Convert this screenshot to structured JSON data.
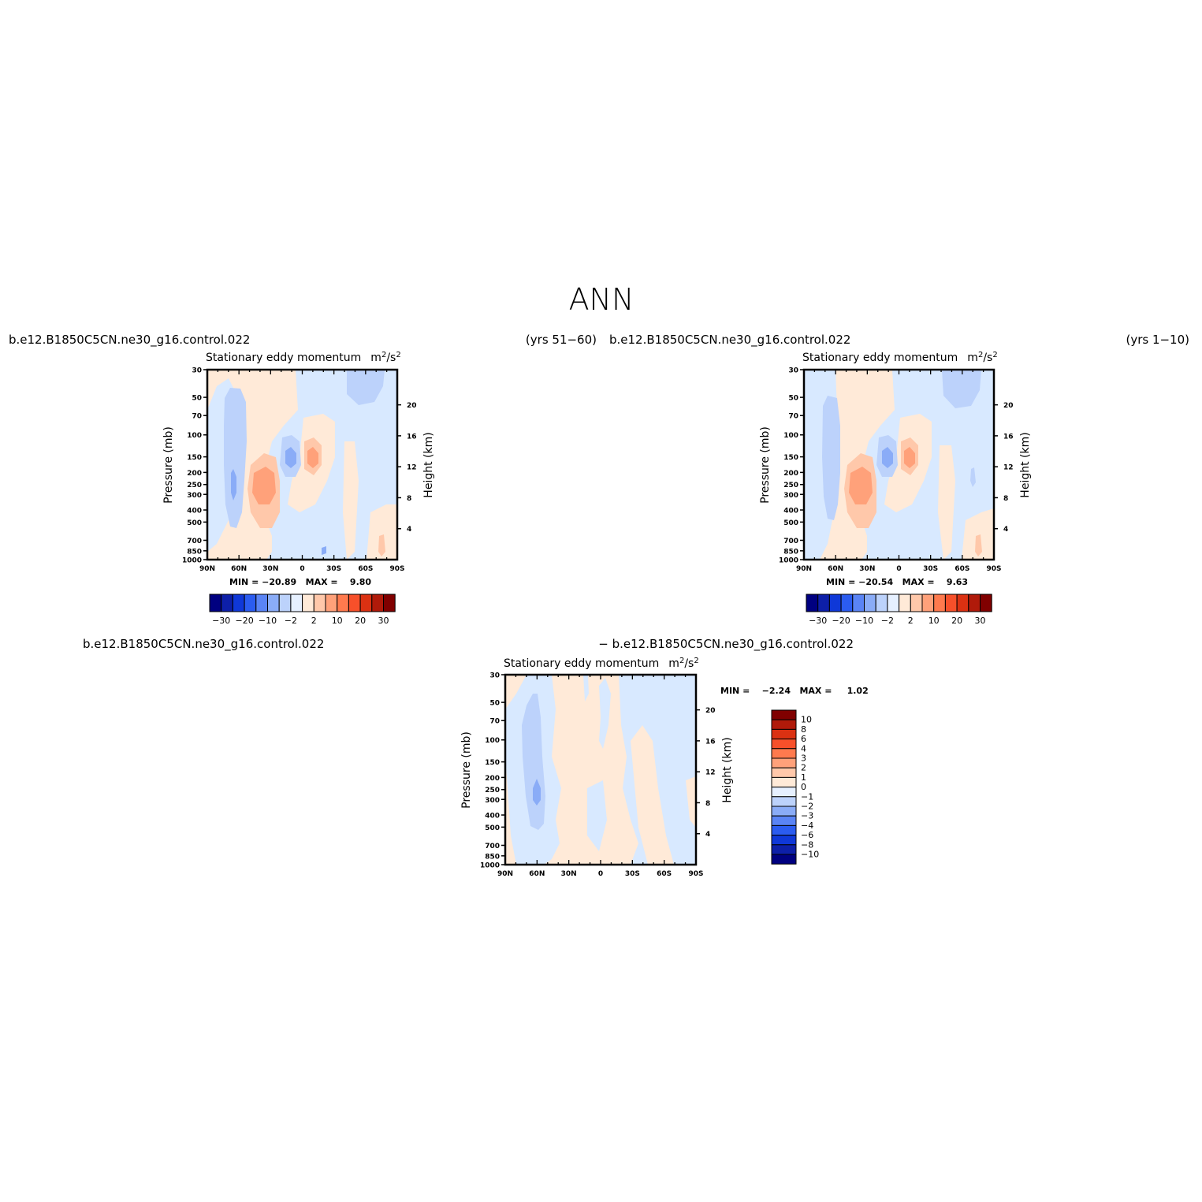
{
  "figure_title": "ANN",
  "panels": [
    {
      "case": "b.e12.B1850C5CN.ne30_g16.control.022",
      "years": "(yrs 51−60)",
      "title": "Stationary eddy momentum",
      "units_base": "m",
      "units_sup1": "2",
      "units_mid": "/s",
      "units_sup2": "2",
      "min_max": "MIN = −20.89   MAX =    9.80"
    },
    {
      "case": "b.e12.B1850C5CN.ne30_g16.control.022",
      "years": "(yrs 1−10)",
      "title": "Stationary eddy momentum",
      "units_base": "m",
      "units_sup1": "2",
      "units_mid": "/s",
      "units_sup2": "2",
      "min_max": "MIN = −20.54   MAX =    9.63"
    },
    {
      "case_line1": "b.e12.B1850C5CN.ne30_g16.control.022",
      "case_line2": "− b.e12.B1850C5CN.ne30_g16.control.022",
      "title": "Stationary eddy momentum",
      "units_base": "m",
      "units_sup1": "2",
      "units_mid": "/s",
      "units_sup2": "2",
      "min_max": "MIN =    −2.24   MAX =     1.02"
    }
  ],
  "axes": {
    "ylabel_left": "Pressure (mb)",
    "ylabel_right": "Height (km)",
    "pressure_ticks": [
      "30",
      "50",
      "70",
      "100",
      "150",
      "200",
      "250",
      "300",
      "400",
      "500",
      "700",
      "850",
      "1000"
    ],
    "height_ticks": [
      "4",
      "8",
      "12",
      "16",
      "20"
    ],
    "lat_ticks": [
      "90N",
      "60N",
      "30N",
      "0",
      "30S",
      "60S",
      "90S"
    ]
  },
  "colorbars": {
    "abs_labels": [
      "−30",
      "−20",
      "−10",
      "−2",
      "2",
      "10",
      "20",
      "30"
    ],
    "abs_colors": [
      "#000080",
      "#0d1fa8",
      "#0f38d8",
      "#2b5cf0",
      "#5a84f5",
      "#8aacf7",
      "#bcd2fb",
      "#e6f0ff",
      "#ffead8",
      "#ffc8aa",
      "#ffa17a",
      "#ff7a4e",
      "#f7502a",
      "#db3112",
      "#b01a0a",
      "#800000"
    ],
    "diff_labels": [
      "10",
      "8",
      "6",
      "4",
      "3",
      "2",
      "1",
      "0",
      "−1",
      "−2",
      "−3",
      "−4",
      "−6",
      "−8",
      "−10"
    ],
    "diff_colors": [
      "#800000",
      "#b01a0a",
      "#db3112",
      "#f7502a",
      "#ff7a4e",
      "#ffa17a",
      "#ffc8aa",
      "#ffead8",
      "#e6f0ff",
      "#bcd2fb",
      "#8aacf7",
      "#5a84f5",
      "#2b5cf0",
      "#0f38d8",
      "#0d1fa8",
      "#000080"
    ]
  },
  "chart_data": [
    {
      "type": "heatmap",
      "title": "Stationary eddy momentum",
      "units": "m²/s²",
      "xlabel": "",
      "ylabel": "Pressure (mb)",
      "ylabel_right": "Height (km)",
      "x": [
        "90N",
        "60N",
        "30N",
        "0",
        "30S",
        "60S",
        "90S"
      ],
      "y_pressure_mb": [
        30,
        50,
        70,
        100,
        150,
        200,
        250,
        300,
        400,
        500,
        700,
        850,
        1000
      ],
      "ylim_mb": [
        1000,
        30
      ],
      "yscale": "log",
      "min": -20.89,
      "max": 9.8,
      "color_levels": [
        -30,
        -20,
        -10,
        -2,
        2,
        10,
        20,
        30
      ],
      "features": [
        {
          "lat": -48,
          "p_mb": 300,
          "value": -12
        },
        {
          "lat": -33,
          "p_mb": 280,
          "value": 8
        },
        {
          "lat": -12,
          "p_mb": 150,
          "value": -20
        },
        {
          "lat": 10,
          "p_mb": 150,
          "value": 9
        }
      ]
    },
    {
      "type": "heatmap",
      "title": "Stationary eddy momentum",
      "units": "m²/s²",
      "xlabel": "",
      "ylabel": "Pressure (mb)",
      "ylabel_right": "Height (km)",
      "x": [
        "90N",
        "60N",
        "30N",
        "0",
        "30S",
        "60S",
        "90S"
      ],
      "y_pressure_mb": [
        30,
        50,
        70,
        100,
        150,
        200,
        250,
        300,
        400,
        500,
        700,
        850,
        1000
      ],
      "ylim_mb": [
        1000,
        30
      ],
      "yscale": "log",
      "min": -20.54,
      "max": 9.63,
      "color_levels": [
        -30,
        -20,
        -10,
        -2,
        2,
        10,
        20,
        30
      ],
      "features": [
        {
          "lat": -48,
          "p_mb": 300,
          "value": -8
        },
        {
          "lat": -33,
          "p_mb": 280,
          "value": 8
        },
        {
          "lat": -12,
          "p_mb": 150,
          "value": -20
        },
        {
          "lat": 10,
          "p_mb": 150,
          "value": 9
        }
      ]
    },
    {
      "type": "heatmap",
      "title": "Stationary eddy momentum",
      "units": "m²/s²",
      "xlabel": "",
      "ylabel": "Pressure (mb)",
      "ylabel_right": "Height (km)",
      "x": [
        "90N",
        "60N",
        "30N",
        "0",
        "30S",
        "60S",
        "90S"
      ],
      "y_pressure_mb": [
        30,
        50,
        70,
        100,
        150,
        200,
        250,
        300,
        400,
        500,
        700,
        850,
        1000
      ],
      "ylim_mb": [
        1000,
        30
      ],
      "yscale": "log",
      "min": -2.24,
      "max": 1.02,
      "color_levels": [
        -10,
        -8,
        -6,
        -4,
        -3,
        -2,
        -1,
        0,
        1,
        2,
        3,
        4,
        6,
        8,
        10
      ],
      "features": [
        {
          "lat": -60,
          "p_mb": 250,
          "value": -2.2
        },
        {
          "lat": -62,
          "p_mb": 200,
          "value": -1.5
        }
      ]
    }
  ]
}
